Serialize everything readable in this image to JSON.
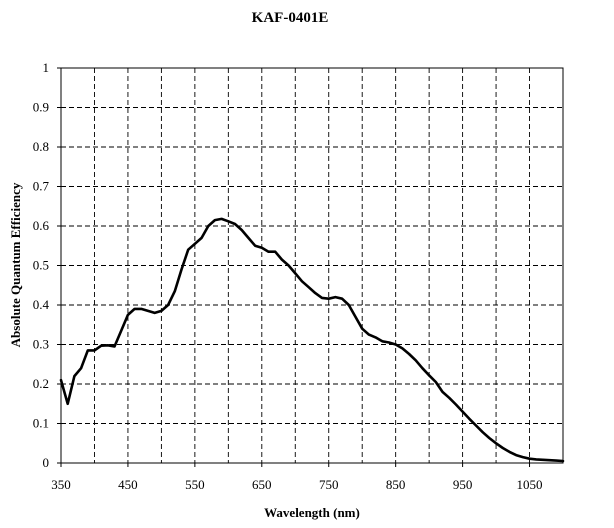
{
  "chart_data": {
    "type": "line",
    "title": "KAF-0401E",
    "xlabel": "Wavelength (nm)",
    "ylabel": "Absolute Quantum Efficiency",
    "xlim": [
      350,
      1100
    ],
    "ylim": [
      0,
      1
    ],
    "x_ticks": [
      350,
      450,
      550,
      650,
      750,
      850,
      950,
      1050
    ],
    "x_tick_labels": [
      "350",
      "450",
      "550",
      "650",
      "750",
      "850",
      "950",
      "1050"
    ],
    "x_gridlines": [
      350,
      400,
      450,
      500,
      550,
      600,
      650,
      700,
      750,
      800,
      850,
      900,
      950,
      1000,
      1050,
      1100
    ],
    "y_ticks": [
      0,
      0.1,
      0.2,
      0.3,
      0.4,
      0.5,
      0.6,
      0.7,
      0.8,
      0.9,
      1
    ],
    "y_tick_labels": [
      "0",
      "0.1",
      "0.2",
      "0.3",
      "0.4",
      "0.5",
      "0.6",
      "0.7",
      "0.8",
      "0.9",
      "1"
    ],
    "grid": true,
    "series": [
      {
        "x": [
          350,
          360,
          370,
          380,
          390,
          400,
          410,
          420,
          430,
          440,
          450,
          460,
          470,
          480,
          490,
          500,
          510,
          520,
          530,
          540,
          550,
          560,
          570,
          580,
          590,
          600,
          610,
          620,
          630,
          640,
          650,
          660,
          670,
          680,
          690,
          700,
          710,
          720,
          730,
          740,
          750,
          760,
          770,
          780,
          790,
          800,
          810,
          820,
          830,
          840,
          850,
          860,
          870,
          880,
          890,
          900,
          910,
          920,
          930,
          940,
          950,
          960,
          970,
          980,
          990,
          1000,
          1010,
          1020,
          1030,
          1040,
          1050,
          1060,
          1070,
          1080,
          1090,
          1100
        ],
        "y": [
          0.21,
          0.15,
          0.22,
          0.24,
          0.285,
          0.285,
          0.297,
          0.298,
          0.295,
          0.335,
          0.375,
          0.39,
          0.39,
          0.385,
          0.38,
          0.385,
          0.4,
          0.435,
          0.49,
          0.54,
          0.555,
          0.57,
          0.6,
          0.615,
          0.618,
          0.612,
          0.605,
          0.59,
          0.57,
          0.55,
          0.545,
          0.535,
          0.535,
          0.515,
          0.5,
          0.48,
          0.46,
          0.445,
          0.43,
          0.418,
          0.416,
          0.42,
          0.416,
          0.4,
          0.37,
          0.34,
          0.325,
          0.318,
          0.308,
          0.305,
          0.3,
          0.29,
          0.276,
          0.26,
          0.24,
          0.222,
          0.205,
          0.18,
          0.165,
          0.148,
          0.13,
          0.112,
          0.095,
          0.078,
          0.063,
          0.05,
          0.038,
          0.028,
          0.02,
          0.015,
          0.011,
          0.009,
          0.008,
          0.007,
          0.006,
          0.005
        ]
      }
    ]
  }
}
